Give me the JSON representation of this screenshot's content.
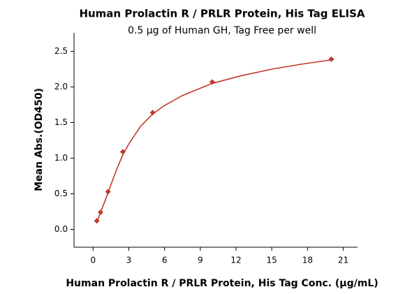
{
  "chart_data": {
    "type": "scatter",
    "title": "Human Prolactin R / PRLR Protein, His Tag  ELISA",
    "subtitle": "0.5 µg of Human GH, Tag Free per well",
    "xlabel": "Human Prolactin R / PRLR Protein, His Tag  Conc. (µg/mL)",
    "ylabel": "Mean Abs.(OD450)",
    "xlim": [
      -1.6,
      22.2
    ],
    "ylim": [
      -0.25,
      2.76
    ],
    "xticks": [
      0,
      3,
      6,
      9,
      12,
      15,
      18,
      21
    ],
    "yticks": [
      {
        "value": 0,
        "label": "0.0"
      },
      {
        "value": 0.5,
        "label": "0.5"
      },
      {
        "value": 1,
        "label": "1.0"
      },
      1.5,
      {
        "value": 2,
        "label": "2.0"
      },
      2.5
    ],
    "series": [
      {
        "style": "marker",
        "color": "#c0392b",
        "x": [
          0.3125,
          0.625,
          1.25,
          2.5,
          5,
          10,
          20
        ],
        "values": [
          0.12,
          0.24,
          0.53,
          1.09,
          1.64,
          2.07,
          2.39
        ]
      },
      {
        "style": "line",
        "color": "#c0392b",
        "x": [
          0.3125,
          0.625,
          1,
          1.5,
          2,
          2.5,
          3,
          4,
          5,
          6,
          7.5,
          10,
          12.5,
          15,
          17.5,
          20
        ],
        "values": [
          0.1,
          0.24,
          0.4,
          0.63,
          0.85,
          1.05,
          1.2,
          1.45,
          1.62,
          1.74,
          1.88,
          2.05,
          2.16,
          2.25,
          2.32,
          2.38
        ]
      }
    ]
  }
}
